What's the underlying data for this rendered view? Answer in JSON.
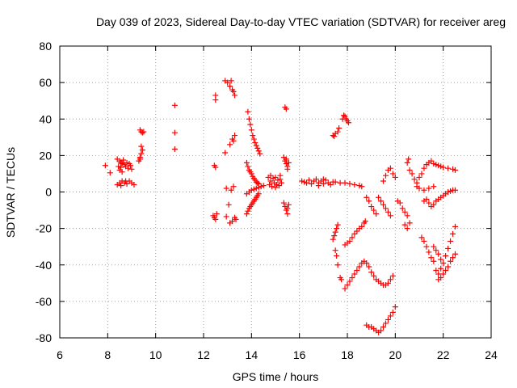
{
  "chart_data": {
    "type": "scatter",
    "title": "Day 039 of 2023, Sidereal Day-to-day VTEC variation (SDTVAR) for receiver areg",
    "xlabel": "GPS time / hours",
    "ylabel": "SDTVAR / TECUs",
    "xlim": [
      6,
      24
    ],
    "ylim": [
      -80,
      80
    ],
    "xticks": [
      6,
      8,
      10,
      12,
      14,
      16,
      18,
      20,
      22,
      24
    ],
    "yticks": [
      -80,
      -60,
      -40,
      -20,
      0,
      20,
      40,
      60,
      80
    ],
    "grid": true,
    "marker": "+",
    "color": "#ff0000",
    "points": [
      [
        7.9,
        14.5
      ],
      [
        8.1,
        10.5
      ],
      [
        8.4,
        18
      ],
      [
        8.5,
        17
      ],
      [
        8.55,
        16
      ],
      [
        8.6,
        15.5
      ],
      [
        8.65,
        17.5
      ],
      [
        8.7,
        15
      ],
      [
        8.75,
        14
      ],
      [
        8.8,
        16
      ],
      [
        8.85,
        13
      ],
      [
        8.9,
        15.5
      ],
      [
        8.95,
        14.5
      ],
      [
        9.0,
        12.5
      ],
      [
        8.5,
        12
      ],
      [
        8.6,
        11
      ],
      [
        8.45,
        14
      ],
      [
        8.55,
        13.5
      ],
      [
        8.4,
        4
      ],
      [
        8.5,
        5
      ],
      [
        8.6,
        6
      ],
      [
        8.7,
        5
      ],
      [
        8.8,
        4.5
      ],
      [
        8.9,
        6
      ],
      [
        9.0,
        5
      ],
      [
        9.1,
        4
      ],
      [
        8.55,
        3.5
      ],
      [
        8.75,
        6
      ],
      [
        9.3,
        17
      ],
      [
        9.35,
        19
      ],
      [
        9.4,
        21
      ],
      [
        9.45,
        23
      ],
      [
        9.4,
        25
      ],
      [
        9.35,
        18
      ],
      [
        9.35,
        34
      ],
      [
        9.4,
        33
      ],
      [
        9.45,
        32.5
      ],
      [
        9.5,
        33
      ],
      [
        10.8,
        47.5
      ],
      [
        10.8,
        32.5
      ],
      [
        10.8,
        23.5
      ],
      [
        12.5,
        53
      ],
      [
        12.5,
        50.5
      ],
      [
        12.45,
        14.5
      ],
      [
        12.5,
        13.5
      ],
      [
        12.4,
        -13
      ],
      [
        12.45,
        -14
      ],
      [
        12.5,
        -15
      ],
      [
        12.55,
        -12
      ],
      [
        12.9,
        61
      ],
      [
        13.0,
        60
      ],
      [
        13.1,
        58
      ],
      [
        13.15,
        61
      ],
      [
        13.2,
        56
      ],
      [
        13.25,
        55
      ],
      [
        13.3,
        53
      ],
      [
        12.9,
        21.5
      ],
      [
        13.1,
        26
      ],
      [
        13.2,
        29
      ],
      [
        13.3,
        31
      ],
      [
        13.25,
        28
      ],
      [
        12.95,
        2
      ],
      [
        13.05,
        -7
      ],
      [
        13.15,
        1
      ],
      [
        13.25,
        3
      ],
      [
        12.95,
        -13.5
      ],
      [
        13.1,
        -17
      ],
      [
        13.2,
        -16
      ],
      [
        13.3,
        -14
      ],
      [
        13.35,
        -15
      ],
      [
        13.85,
        44
      ],
      [
        13.9,
        40
      ],
      [
        13.95,
        37
      ],
      [
        14.0,
        34
      ],
      [
        14.05,
        31
      ],
      [
        14.1,
        29
      ],
      [
        14.15,
        27
      ],
      [
        14.2,
        25.5
      ],
      [
        14.25,
        24
      ],
      [
        14.3,
        22.5
      ],
      [
        14.35,
        21
      ],
      [
        13.8,
        16
      ],
      [
        13.85,
        14
      ],
      [
        13.9,
        12
      ],
      [
        13.95,
        11
      ],
      [
        14.0,
        10
      ],
      [
        14.05,
        8.5
      ],
      [
        14.1,
        7.5
      ],
      [
        14.15,
        6.5
      ],
      [
        14.2,
        5.5
      ],
      [
        14.25,
        5
      ],
      [
        14.3,
        4.5
      ],
      [
        13.8,
        -1
      ],
      [
        13.9,
        0
      ],
      [
        14.0,
        1
      ],
      [
        14.1,
        1.5
      ],
      [
        14.2,
        2
      ],
      [
        14.3,
        2.5
      ],
      [
        14.4,
        3
      ],
      [
        14.5,
        3.5
      ],
      [
        13.8,
        -12
      ],
      [
        13.85,
        -10.5
      ],
      [
        13.9,
        -9
      ],
      [
        13.95,
        -8
      ],
      [
        14.0,
        -7
      ],
      [
        14.05,
        -6
      ],
      [
        14.1,
        -5
      ],
      [
        14.15,
        -4
      ],
      [
        14.2,
        -3
      ],
      [
        14.25,
        -2
      ],
      [
        14.3,
        -1
      ],
      [
        14.7,
        8
      ],
      [
        14.75,
        4
      ],
      [
        14.8,
        6
      ],
      [
        14.85,
        3
      ],
      [
        14.9,
        7.5
      ],
      [
        14.95,
        5
      ],
      [
        15.0,
        8
      ],
      [
        15.05,
        4
      ],
      [
        15.1,
        6.5
      ],
      [
        15.15,
        3.5
      ],
      [
        15.2,
        7
      ],
      [
        15.25,
        5
      ],
      [
        14.8,
        9
      ],
      [
        15.0,
        2.5
      ],
      [
        15.2,
        9
      ],
      [
        15.4,
        46.5
      ],
      [
        15.45,
        45.5
      ],
      [
        15.35,
        19
      ],
      [
        15.4,
        17
      ],
      [
        15.45,
        15.5
      ],
      [
        15.5,
        14
      ],
      [
        15.55,
        16
      ],
      [
        15.45,
        18
      ],
      [
        15.5,
        12.5
      ],
      [
        15.35,
        -6
      ],
      [
        15.4,
        -8
      ],
      [
        15.45,
        -10
      ],
      [
        15.5,
        -12
      ],
      [
        15.55,
        -7
      ],
      [
        15.5,
        -9
      ],
      [
        16.1,
        6
      ],
      [
        16.2,
        5.5
      ],
      [
        16.3,
        5
      ],
      [
        16.4,
        6.5
      ],
      [
        16.5,
        4.5
      ],
      [
        16.6,
        6
      ],
      [
        16.7,
        7
      ],
      [
        16.8,
        5
      ],
      [
        16.9,
        6
      ],
      [
        17.0,
        4.5
      ],
      [
        17.1,
        6.5
      ],
      [
        17.2,
        5
      ],
      [
        17.3,
        4
      ],
      [
        17.4,
        5.5
      ],
      [
        16.8,
        3.5
      ],
      [
        17.0,
        7
      ],
      [
        17.5,
        5.5
      ],
      [
        17.7,
        5
      ],
      [
        17.9,
        5
      ],
      [
        18.1,
        4.5
      ],
      [
        18.3,
        4
      ],
      [
        18.5,
        3.5
      ],
      [
        18.6,
        3
      ],
      [
        17.4,
        31
      ],
      [
        17.45,
        30.5
      ],
      [
        17.5,
        32
      ],
      [
        17.6,
        33
      ],
      [
        17.65,
        35
      ],
      [
        17.8,
        40
      ],
      [
        17.85,
        42
      ],
      [
        17.9,
        41.5
      ],
      [
        17.95,
        40
      ],
      [
        18.0,
        39
      ],
      [
        18.05,
        38
      ],
      [
        17.4,
        -26
      ],
      [
        17.45,
        -24
      ],
      [
        17.5,
        -22
      ],
      [
        17.55,
        -20
      ],
      [
        17.6,
        -18
      ],
      [
        17.5,
        -32
      ],
      [
        17.55,
        -35
      ],
      [
        17.6,
        -40
      ],
      [
        17.7,
        -47
      ],
      [
        17.75,
        -48
      ],
      [
        17.9,
        -53
      ],
      [
        18.0,
        -51
      ],
      [
        18.1,
        -49
      ],
      [
        18.2,
        -47
      ],
      [
        18.3,
        -45
      ],
      [
        18.4,
        -43
      ],
      [
        18.5,
        -41
      ],
      [
        18.6,
        -39
      ],
      [
        18.7,
        -38
      ],
      [
        17.9,
        -29
      ],
      [
        18.0,
        -28
      ],
      [
        18.1,
        -27
      ],
      [
        18.2,
        -25
      ],
      [
        18.3,
        -23
      ],
      [
        18.4,
        -21.5
      ],
      [
        18.5,
        -20
      ],
      [
        18.6,
        -19
      ],
      [
        18.7,
        -17
      ],
      [
        18.75,
        -16
      ],
      [
        18.8,
        -39
      ],
      [
        18.9,
        -41
      ],
      [
        19.0,
        -44
      ],
      [
        19.1,
        -46
      ],
      [
        19.2,
        -48
      ],
      [
        19.3,
        -49
      ],
      [
        19.4,
        -50
      ],
      [
        19.5,
        -51
      ],
      [
        19.6,
        -51
      ],
      [
        19.7,
        -50
      ],
      [
        19.8,
        -48
      ],
      [
        19.9,
        -46
      ],
      [
        18.8,
        -73
      ],
      [
        18.9,
        -74
      ],
      [
        19.0,
        -74
      ],
      [
        19.1,
        -75
      ],
      [
        19.2,
        -76
      ],
      [
        19.3,
        -77
      ],
      [
        19.4,
        -76
      ],
      [
        19.5,
        -74
      ],
      [
        19.6,
        -72
      ],
      [
        19.7,
        -70
      ],
      [
        19.8,
        -68
      ],
      [
        19.9,
        -66
      ],
      [
        20.0,
        -63
      ],
      [
        18.8,
        -3
      ],
      [
        18.9,
        -5
      ],
      [
        19.0,
        -8
      ],
      [
        19.1,
        -10
      ],
      [
        19.2,
        -12
      ],
      [
        19.3,
        -3
      ],
      [
        19.4,
        -5
      ],
      [
        19.5,
        -7
      ],
      [
        19.6,
        -9
      ],
      [
        19.7,
        -11
      ],
      [
        19.8,
        -13
      ],
      [
        19.5,
        6
      ],
      [
        19.6,
        9
      ],
      [
        19.7,
        12
      ],
      [
        19.8,
        13
      ],
      [
        19.9,
        10
      ],
      [
        20.0,
        8
      ],
      [
        20.1,
        -5
      ],
      [
        20.2,
        -6
      ],
      [
        20.3,
        -9
      ],
      [
        20.4,
        -11
      ],
      [
        20.5,
        -13
      ],
      [
        20.5,
        16
      ],
      [
        20.55,
        18
      ],
      [
        20.6,
        12
      ],
      [
        20.7,
        10
      ],
      [
        20.8,
        7
      ],
      [
        20.9,
        5
      ],
      [
        21.0,
        8
      ],
      [
        21.1,
        10
      ],
      [
        21.2,
        13
      ],
      [
        21.3,
        15
      ],
      [
        21.4,
        16
      ],
      [
        21.5,
        17
      ],
      [
        21.6,
        15.5
      ],
      [
        21.7,
        15
      ],
      [
        21.8,
        14.5
      ],
      [
        21.9,
        14
      ],
      [
        22.0,
        13.5
      ],
      [
        22.2,
        13
      ],
      [
        22.4,
        12.5
      ],
      [
        22.5,
        12
      ],
      [
        20.9,
        3
      ],
      [
        21.0,
        2
      ],
      [
        21.2,
        1
      ],
      [
        21.4,
        2
      ],
      [
        21.6,
        3
      ],
      [
        20.4,
        -18
      ],
      [
        20.5,
        -20
      ],
      [
        20.6,
        -17
      ],
      [
        21.2,
        -5
      ],
      [
        21.3,
        -4
      ],
      [
        21.4,
        -6
      ],
      [
        21.5,
        -8
      ],
      [
        21.6,
        -7
      ],
      [
        21.7,
        -5
      ],
      [
        21.8,
        -4
      ],
      [
        21.9,
        -3
      ],
      [
        22.0,
        -2
      ],
      [
        22.1,
        -1
      ],
      [
        22.2,
        0
      ],
      [
        22.3,
        0.5
      ],
      [
        22.4,
        1
      ],
      [
        22.5,
        1
      ],
      [
        21.1,
        -25
      ],
      [
        21.2,
        -27
      ],
      [
        21.3,
        -30
      ],
      [
        21.4,
        -33
      ],
      [
        21.5,
        -36
      ],
      [
        21.6,
        -38
      ],
      [
        21.7,
        -43
      ],
      [
        21.8,
        -45
      ],
      [
        21.9,
        -42
      ],
      [
        22.0,
        -39
      ],
      [
        22.1,
        -35
      ],
      [
        22.2,
        -31
      ],
      [
        22.3,
        -27
      ],
      [
        22.4,
        -23
      ],
      [
        22.5,
        -19
      ],
      [
        21.8,
        -48
      ],
      [
        21.9,
        -47
      ],
      [
        22.0,
        -45
      ],
      [
        22.1,
        -43
      ],
      [
        22.2,
        -41
      ],
      [
        22.3,
        -38
      ],
      [
        22.4,
        -36
      ],
      [
        22.5,
        -34
      ],
      [
        21.6,
        -30
      ],
      [
        21.7,
        -32
      ],
      [
        21.8,
        -34
      ],
      [
        21.9,
        -37
      ]
    ]
  }
}
